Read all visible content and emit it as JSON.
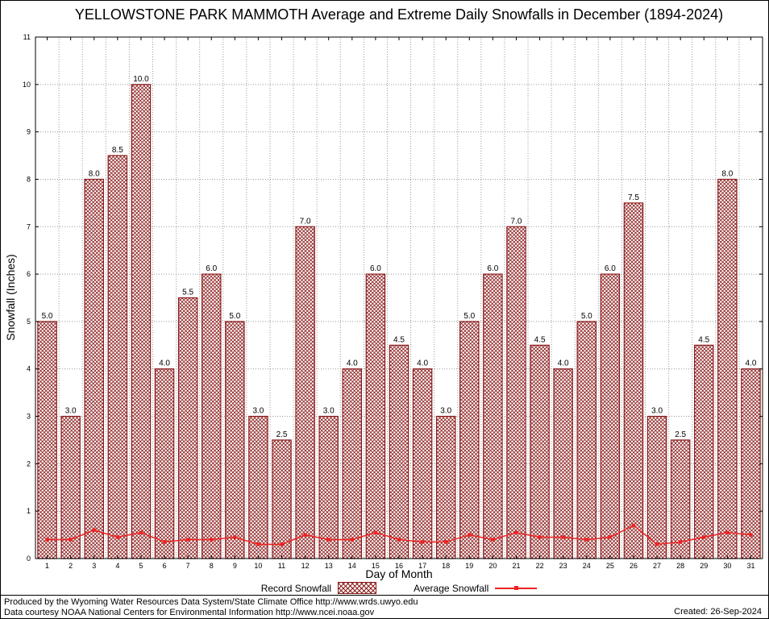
{
  "title": "YELLOWSTONE PARK MAMMOTH Average and Extreme Daily Snowfalls in December (1894-2024)",
  "chart_data": {
    "type": "bar",
    "title": "YELLOWSTONE PARK MAMMOTH Average and Extreme Daily Snowfalls in December (1894-2024)",
    "xlabel": "Day of Month",
    "ylabel": "Snowfall (Inches)",
    "ylim": [
      0,
      11
    ],
    "ytick_step": 1,
    "grid": true,
    "legend_position": "bottom",
    "categories": [
      1,
      2,
      3,
      4,
      5,
      6,
      7,
      8,
      9,
      10,
      11,
      12,
      13,
      14,
      15,
      16,
      17,
      18,
      19,
      20,
      21,
      22,
      23,
      24,
      25,
      26,
      27,
      28,
      29,
      30,
      31
    ],
    "series": [
      {
        "name": "Record Snowfall",
        "type": "bar",
        "values": [
          5.0,
          3.0,
          8.0,
          8.5,
          10.0,
          4.0,
          5.5,
          6.0,
          5.0,
          3.0,
          2.5,
          7.0,
          3.0,
          4.0,
          6.0,
          4.5,
          4.0,
          3.0,
          5.0,
          6.0,
          7.0,
          4.5,
          4.0,
          5.0,
          6.0,
          7.5,
          3.0,
          2.5,
          4.5,
          8.0,
          4.0
        ]
      },
      {
        "name": "Average Snowfall",
        "type": "line",
        "values": [
          0.4,
          0.4,
          0.6,
          0.45,
          0.55,
          0.35,
          0.4,
          0.4,
          0.45,
          0.3,
          0.3,
          0.5,
          0.4,
          0.4,
          0.55,
          0.4,
          0.35,
          0.35,
          0.5,
          0.4,
          0.55,
          0.45,
          0.45,
          0.4,
          0.45,
          0.7,
          0.3,
          0.35,
          0.45,
          0.55,
          0.5
        ]
      }
    ],
    "colors": {
      "bar_edge": "#8b1a1a",
      "bar_hatch": "#8b1a1a",
      "bar_fill": "#ffffff",
      "line": "#ee2222",
      "grid": "#999999",
      "axis": "#000000",
      "text": "#000000"
    }
  },
  "footer": {
    "line1": "Produced by the Wyoming Water Resources Data System/State Climate Office http://www.wrds.uwyo.edu",
    "line2": "Data courtesy NOAA National Centers for Environmental Information http://www.ncei.noaa.gov",
    "created": "Created: 26-Sep-2024"
  }
}
